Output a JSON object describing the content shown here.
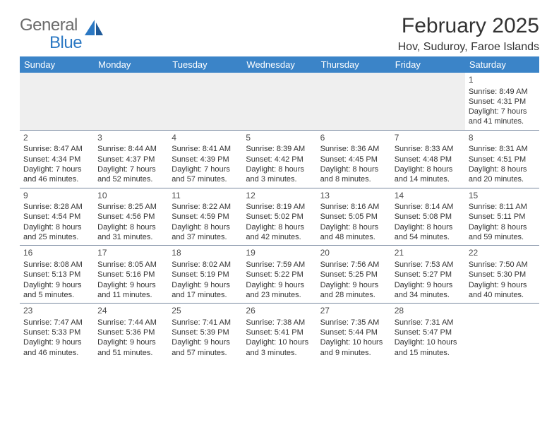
{
  "logo": {
    "text1": "General",
    "text2": "Blue"
  },
  "title": "February 2025",
  "location": "Hov, Suduroy, Faroe Islands",
  "colors": {
    "header_bg": "#3b84c8",
    "header_text": "#ffffff",
    "border": "#7a8aa0",
    "empty_bg": "#efefef",
    "text": "#333333",
    "logo_gray": "#6b6b6b",
    "logo_blue": "#2b78c3"
  },
  "day_names": [
    "Sunday",
    "Monday",
    "Tuesday",
    "Wednesday",
    "Thursday",
    "Friday",
    "Saturday"
  ],
  "weeks": [
    [
      {
        "empty": true,
        "alt": true
      },
      {
        "empty": true,
        "alt": true
      },
      {
        "empty": true,
        "alt": true
      },
      {
        "empty": true,
        "alt": true
      },
      {
        "empty": true,
        "alt": true
      },
      {
        "empty": true,
        "alt": true
      },
      {
        "day": "1",
        "sunrise": "Sunrise: 8:49 AM",
        "sunset": "Sunset: 4:31 PM",
        "daylight": "Daylight: 7 hours and 41 minutes."
      }
    ],
    [
      {
        "day": "2",
        "sunrise": "Sunrise: 8:47 AM",
        "sunset": "Sunset: 4:34 PM",
        "daylight": "Daylight: 7 hours and 46 minutes."
      },
      {
        "day": "3",
        "sunrise": "Sunrise: 8:44 AM",
        "sunset": "Sunset: 4:37 PM",
        "daylight": "Daylight: 7 hours and 52 minutes."
      },
      {
        "day": "4",
        "sunrise": "Sunrise: 8:41 AM",
        "sunset": "Sunset: 4:39 PM",
        "daylight": "Daylight: 7 hours and 57 minutes."
      },
      {
        "day": "5",
        "sunrise": "Sunrise: 8:39 AM",
        "sunset": "Sunset: 4:42 PM",
        "daylight": "Daylight: 8 hours and 3 minutes."
      },
      {
        "day": "6",
        "sunrise": "Sunrise: 8:36 AM",
        "sunset": "Sunset: 4:45 PM",
        "daylight": "Daylight: 8 hours and 8 minutes."
      },
      {
        "day": "7",
        "sunrise": "Sunrise: 8:33 AM",
        "sunset": "Sunset: 4:48 PM",
        "daylight": "Daylight: 8 hours and 14 minutes."
      },
      {
        "day": "8",
        "sunrise": "Sunrise: 8:31 AM",
        "sunset": "Sunset: 4:51 PM",
        "daylight": "Daylight: 8 hours and 20 minutes."
      }
    ],
    [
      {
        "day": "9",
        "sunrise": "Sunrise: 8:28 AM",
        "sunset": "Sunset: 4:54 PM",
        "daylight": "Daylight: 8 hours and 25 minutes."
      },
      {
        "day": "10",
        "sunrise": "Sunrise: 8:25 AM",
        "sunset": "Sunset: 4:56 PM",
        "daylight": "Daylight: 8 hours and 31 minutes."
      },
      {
        "day": "11",
        "sunrise": "Sunrise: 8:22 AM",
        "sunset": "Sunset: 4:59 PM",
        "daylight": "Daylight: 8 hours and 37 minutes."
      },
      {
        "day": "12",
        "sunrise": "Sunrise: 8:19 AM",
        "sunset": "Sunset: 5:02 PM",
        "daylight": "Daylight: 8 hours and 42 minutes."
      },
      {
        "day": "13",
        "sunrise": "Sunrise: 8:16 AM",
        "sunset": "Sunset: 5:05 PM",
        "daylight": "Daylight: 8 hours and 48 minutes."
      },
      {
        "day": "14",
        "sunrise": "Sunrise: 8:14 AM",
        "sunset": "Sunset: 5:08 PM",
        "daylight": "Daylight: 8 hours and 54 minutes."
      },
      {
        "day": "15",
        "sunrise": "Sunrise: 8:11 AM",
        "sunset": "Sunset: 5:11 PM",
        "daylight": "Daylight: 8 hours and 59 minutes."
      }
    ],
    [
      {
        "day": "16",
        "sunrise": "Sunrise: 8:08 AM",
        "sunset": "Sunset: 5:13 PM",
        "daylight": "Daylight: 9 hours and 5 minutes."
      },
      {
        "day": "17",
        "sunrise": "Sunrise: 8:05 AM",
        "sunset": "Sunset: 5:16 PM",
        "daylight": "Daylight: 9 hours and 11 minutes."
      },
      {
        "day": "18",
        "sunrise": "Sunrise: 8:02 AM",
        "sunset": "Sunset: 5:19 PM",
        "daylight": "Daylight: 9 hours and 17 minutes."
      },
      {
        "day": "19",
        "sunrise": "Sunrise: 7:59 AM",
        "sunset": "Sunset: 5:22 PM",
        "daylight": "Daylight: 9 hours and 23 minutes."
      },
      {
        "day": "20",
        "sunrise": "Sunrise: 7:56 AM",
        "sunset": "Sunset: 5:25 PM",
        "daylight": "Daylight: 9 hours and 28 minutes."
      },
      {
        "day": "21",
        "sunrise": "Sunrise: 7:53 AM",
        "sunset": "Sunset: 5:27 PM",
        "daylight": "Daylight: 9 hours and 34 minutes."
      },
      {
        "day": "22",
        "sunrise": "Sunrise: 7:50 AM",
        "sunset": "Sunset: 5:30 PM",
        "daylight": "Daylight: 9 hours and 40 minutes."
      }
    ],
    [
      {
        "day": "23",
        "sunrise": "Sunrise: 7:47 AM",
        "sunset": "Sunset: 5:33 PM",
        "daylight": "Daylight: 9 hours and 46 minutes."
      },
      {
        "day": "24",
        "sunrise": "Sunrise: 7:44 AM",
        "sunset": "Sunset: 5:36 PM",
        "daylight": "Daylight: 9 hours and 51 minutes."
      },
      {
        "day": "25",
        "sunrise": "Sunrise: 7:41 AM",
        "sunset": "Sunset: 5:39 PM",
        "daylight": "Daylight: 9 hours and 57 minutes."
      },
      {
        "day": "26",
        "sunrise": "Sunrise: 7:38 AM",
        "sunset": "Sunset: 5:41 PM",
        "daylight": "Daylight: 10 hours and 3 minutes."
      },
      {
        "day": "27",
        "sunrise": "Sunrise: 7:35 AM",
        "sunset": "Sunset: 5:44 PM",
        "daylight": "Daylight: 10 hours and 9 minutes."
      },
      {
        "day": "28",
        "sunrise": "Sunrise: 7:31 AM",
        "sunset": "Sunset: 5:47 PM",
        "daylight": "Daylight: 10 hours and 15 minutes."
      },
      {
        "empty": true
      }
    ]
  ]
}
